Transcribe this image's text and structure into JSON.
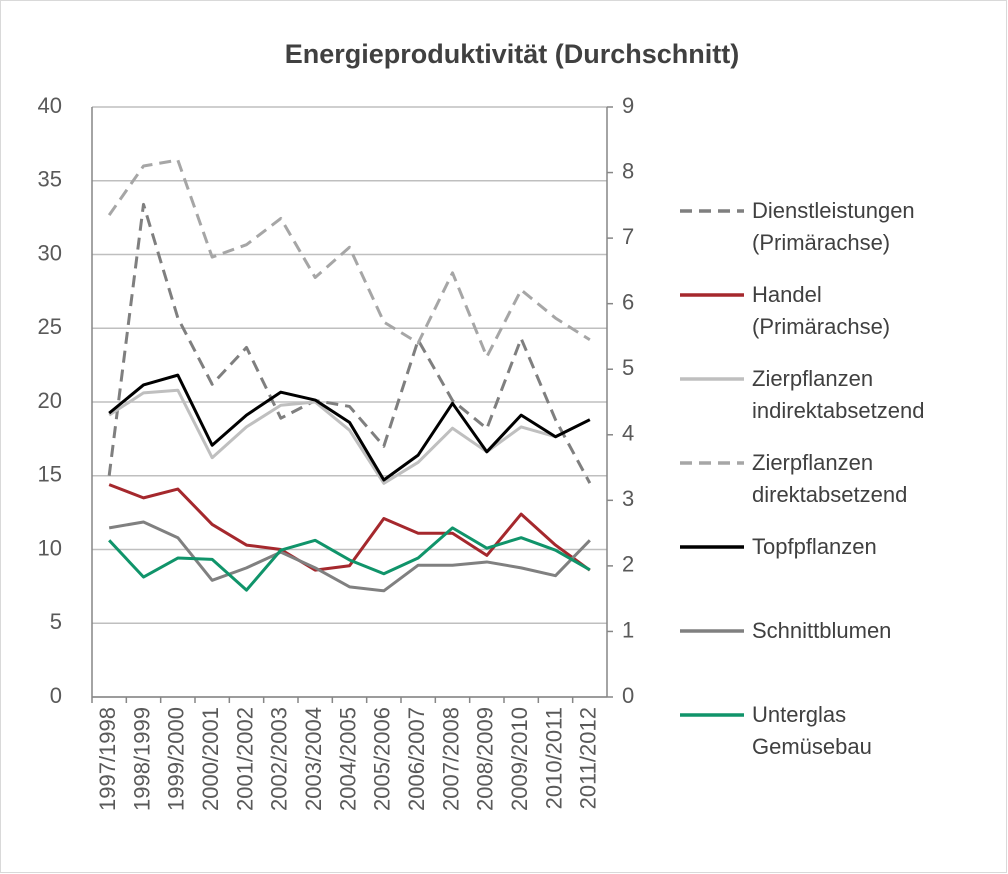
{
  "chart_data": {
    "type": "line",
    "title": "Energieproduktivität (Durchschnitt)",
    "categories": [
      "1997/1998",
      "1998/1999",
      "1999/2000",
      "2000/2001",
      "2001/2002",
      "2002/2003",
      "2003/2004",
      "2004/2005",
      "2005/2006",
      "2006/2007",
      "2007/2008",
      "2008/2009",
      "2009/2010",
      "2010/2011",
      "2011/2012"
    ],
    "ylim": [
      0,
      40
    ],
    "yticks": [
      0,
      5,
      10,
      15,
      20,
      25,
      30,
      35,
      40
    ],
    "y2lim": [
      0,
      9
    ],
    "y2ticks": [
      0,
      1,
      2,
      3,
      4,
      5,
      6,
      7,
      8,
      9
    ],
    "grid": true,
    "legend": "right",
    "series": [
      {
        "name": "Dienstleistungen\n(Primärachse)",
        "color": "#7f7f7f",
        "dash": true,
        "axis": "y",
        "values": [
          15.0,
          33.4,
          25.7,
          21.2,
          23.7,
          18.9,
          20.1,
          19.7,
          17.0,
          24.2,
          20.1,
          18.2,
          24.3,
          18.8,
          14.5
        ]
      },
      {
        "name": "Handel\n(Primärachse)",
        "color": "#a5282d",
        "dash": false,
        "axis": "y",
        "values": [
          14.4,
          13.5,
          14.1,
          11.7,
          10.3,
          10.0,
          8.6,
          8.9,
          12.1,
          11.1,
          11.1,
          9.6,
          12.4,
          10.3,
          8.6
        ]
      },
      {
        "name": "Zierpflanzen\nindirektabsetzend",
        "color": "#bfbfbf",
        "dash": false,
        "axis": "y2",
        "values": [
          4.3,
          4.64,
          4.68,
          3.65,
          4.12,
          4.45,
          4.5,
          4.07,
          3.26,
          3.58,
          4.1,
          3.74,
          4.12,
          3.97,
          4.23
        ]
      },
      {
        "name": "Zierpflanzen\ndirektabsetzend",
        "color": "#a6a6a6",
        "dash": true,
        "axis": "y2",
        "values": [
          7.35,
          8.1,
          8.19,
          6.71,
          6.9,
          7.3,
          6.4,
          6.86,
          5.72,
          5.4,
          6.47,
          5.19,
          6.21,
          5.78,
          5.45
        ]
      },
      {
        "name": "Topfpflanzen",
        "color": "#000000",
        "dash": false,
        "axis": "y2",
        "values": [
          4.33,
          4.76,
          4.91,
          3.84,
          4.3,
          4.65,
          4.53,
          4.19,
          3.31,
          3.69,
          4.48,
          3.74,
          4.3,
          3.97,
          4.23
        ]
      },
      {
        "name": "Schnittblumen",
        "color": "#808080",
        "dash": false,
        "axis": "y2",
        "values": [
          2.58,
          2.67,
          2.43,
          1.78,
          1.97,
          2.21,
          1.97,
          1.68,
          1.62,
          2.01,
          2.01,
          2.06,
          1.97,
          1.85,
          2.39
        ]
      },
      {
        "name": "Unterglas\nGemüsebau",
        "color": "#10946a",
        "dash": false,
        "axis": "y2",
        "values": [
          2.39,
          1.83,
          2.12,
          2.1,
          1.63,
          2.24,
          2.39,
          2.09,
          1.88,
          2.12,
          2.58,
          2.27,
          2.43,
          2.24,
          1.94
        ]
      }
    ]
  }
}
